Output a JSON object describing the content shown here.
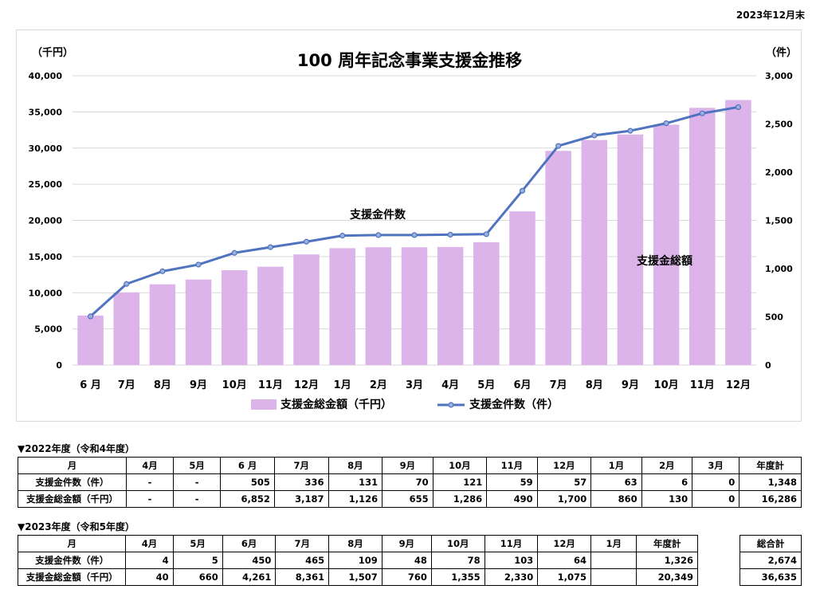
{
  "header": {
    "date": "2023年12月末"
  },
  "chart_data": {
    "type": "bar+line",
    "title": "100 周年記念事業支援金推移",
    "left_unit": "（千円）",
    "right_unit": "（件）",
    "categories": [
      "6 月",
      "7月",
      "8月",
      "9月",
      "10月",
      "11月",
      "12月",
      "1月",
      "2月",
      "3月",
      "4月",
      "5月",
      "6月",
      "7月",
      "8月",
      "9月",
      "10月",
      "11月",
      "12月"
    ],
    "left_axis": {
      "ylim": [
        0,
        40000
      ],
      "ticks": [
        "0",
        "5,000",
        "10,000",
        "15,000",
        "20,000",
        "25,000",
        "30,000",
        "35,000",
        "40,000"
      ]
    },
    "right_axis": {
      "ylim": [
        0,
        3000
      ],
      "ticks": [
        "0",
        "500",
        "1,000",
        "1,500",
        "2,000",
        "2,500",
        "3,000"
      ]
    },
    "series": [
      {
        "name": "支援金総金額（千円）",
        "type": "bar",
        "axis": "left",
        "color": "#dcb4ea",
        "values": [
          6852,
          10039,
          11165,
          11820,
          13106,
          13596,
          15296,
          16156,
          16286,
          16286,
          16326,
          16986,
          21247,
          29608,
          31115,
          31875,
          33230,
          35560,
          36635
        ]
      },
      {
        "name": "支援金件数（件）",
        "type": "line",
        "axis": "right",
        "color": "#4f73be",
        "values": [
          505,
          841,
          972,
          1042,
          1163,
          1222,
          1279,
          1342,
          1348,
          1348,
          1352,
          1357,
          1807,
          2272,
          2381,
          2429,
          2507,
          2610,
          2674
        ]
      }
    ],
    "annotations": [
      "支援金件数",
      "支援金総額"
    ],
    "legend": "bottom",
    "grid": true
  },
  "tables": {
    "fy2022": {
      "caption": "▼2022年度（令和4年度）",
      "header": [
        "月",
        "4月",
        "5月",
        "6 月",
        "7月",
        "8月",
        "9月",
        "10月",
        "11月",
        "12月",
        "1月",
        "2月",
        "3月",
        "年度計"
      ],
      "rows": [
        [
          "支援金件数（件）",
          "-",
          "-",
          "505",
          "336",
          "131",
          "70",
          "121",
          "59",
          "57",
          "63",
          "6",
          "0",
          "1,348"
        ],
        [
          "支援金総金額（千円）",
          "-",
          "-",
          "6,852",
          "3,187",
          "1,126",
          "655",
          "1,286",
          "490",
          "1,700",
          "860",
          "130",
          "0",
          "16,286"
        ]
      ]
    },
    "fy2023": {
      "caption": "▼2023年度（令和5年度）",
      "header": [
        "月",
        "4月",
        "5月",
        "6月",
        "7月",
        "8月",
        "9月",
        "10月",
        "11月",
        "12月",
        "1月",
        "年度計"
      ],
      "total_header": "総合計",
      "rows": [
        [
          "支援金件数（件）",
          "4",
          "5",
          "450",
          "465",
          "109",
          "48",
          "78",
          "103",
          "64",
          "",
          "1,326"
        ],
        [
          "支援金総金額（千円）",
          "40",
          "660",
          "4,261",
          "8,361",
          "1,507",
          "760",
          "1,355",
          "2,330",
          "1,075",
          "",
          "20,349"
        ]
      ],
      "totals": [
        "2,674",
        "36,635"
      ]
    }
  }
}
